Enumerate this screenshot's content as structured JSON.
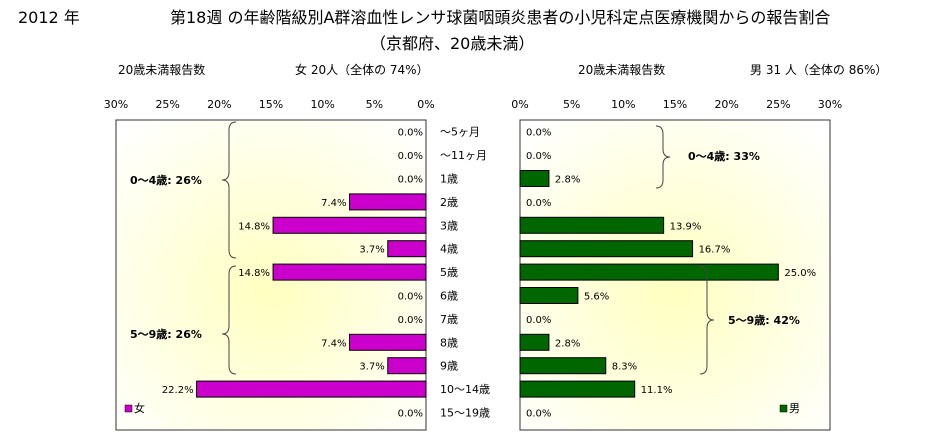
{
  "header": {
    "year": "2012 年",
    "title": "第18週 の年齢階級別A群溶血性レンサ球菌咽頭炎患者の小児科定点医療機関からの報告割合",
    "subtitle": "（京都府、20歳未満）"
  },
  "left_panel": {
    "count_label": "20歳未満報告数",
    "summary": "女  20人（全体の  74%）",
    "legend": "女",
    "color": "#cc00cc",
    "group_labels": [
      "0～4歳: 26%",
      "5～9歳: 26%"
    ]
  },
  "right_panel": {
    "count_label": "20歳未満報告数",
    "summary": "男  31 人（全体の  86%）",
    "legend": "男",
    "color": "#006600",
    "group_labels": [
      "0～4歳: 33%",
      "5～9歳: 42%"
    ]
  },
  "chart_data": {
    "type": "bar",
    "categories": [
      "～5ヶ月",
      "～11ヶ月",
      "1歳",
      "2歳",
      "3歳",
      "4歳",
      "5歳",
      "6歳",
      "7歳",
      "8歳",
      "9歳",
      "10～14歳",
      "15～19歳"
    ],
    "axis_ticks": [
      "0%",
      "5%",
      "10%",
      "15%",
      "20%",
      "25%",
      "30%"
    ],
    "xlim": [
      0,
      30
    ],
    "series": [
      {
        "name": "女",
        "values": [
          0.0,
          0.0,
          0.0,
          7.4,
          14.8,
          3.7,
          14.8,
          0.0,
          0.0,
          7.4,
          3.7,
          22.2,
          0.0
        ],
        "labels": [
          "0.0%",
          "0.0%",
          "0.0%",
          "7.4%",
          "14.8%",
          "3.7%",
          "14.8%",
          "0.0%",
          "0.0%",
          "7.4%",
          "3.7%",
          "22.2%",
          "0.0%"
        ]
      },
      {
        "name": "男",
        "values": [
          0.0,
          0.0,
          2.8,
          0.0,
          13.9,
          16.7,
          25.0,
          5.6,
          0.0,
          2.8,
          8.3,
          11.1,
          0.0
        ],
        "labels": [
          "0.0%",
          "0.0%",
          "2.8%",
          "0.0%",
          "13.9%",
          "16.7%",
          "25.0%",
          "5.6%",
          "0.0%",
          "2.8%",
          "8.3%",
          "11.1%",
          "0.0%"
        ]
      }
    ]
  }
}
